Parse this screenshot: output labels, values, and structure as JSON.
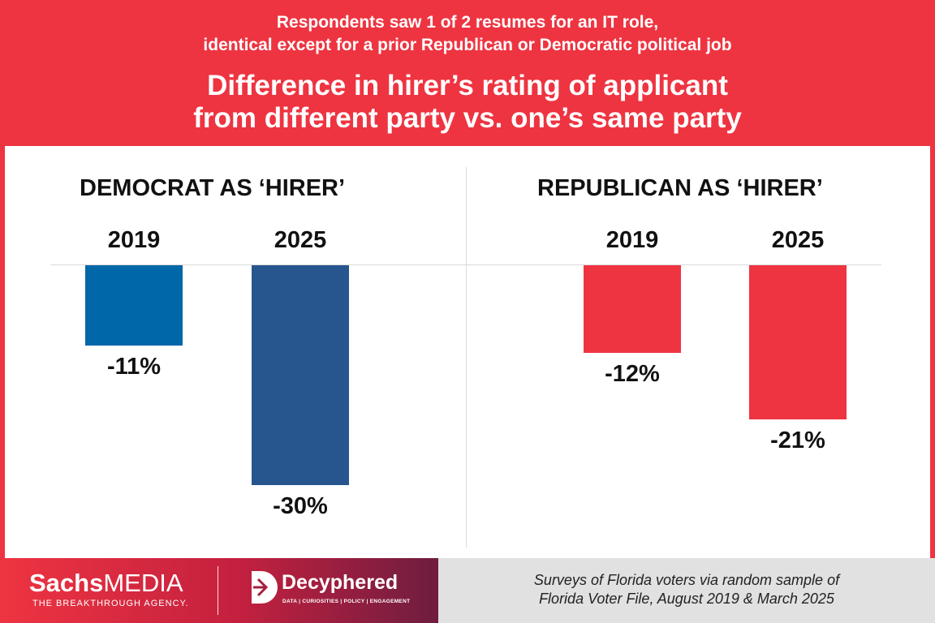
{
  "header": {
    "subtitle_line1": "Respondents saw 1 of 2 resumes for an IT role,",
    "subtitle_line2": "identical except for a prior Republican or Democratic political job",
    "title_line1": "Difference in hirer’s rating of applicant",
    "title_line2": "from different party vs. one’s same party"
  },
  "colors": {
    "header_bg": "#ee3441",
    "dem_2019": "#0068a8",
    "dem_2025": "#27568f",
    "rep": "#ee3441"
  },
  "chart_data": [
    {
      "type": "bar",
      "title": "DEMOCRAT AS ‘HIRER’",
      "categories": [
        "2019",
        "2025"
      ],
      "values": [
        -11,
        -30
      ],
      "value_labels": [
        "-11%",
        "-30%"
      ],
      "ylim": [
        -30,
        0
      ],
      "xlabel": "",
      "ylabel": ""
    },
    {
      "type": "bar",
      "title": "REPUBLICAN AS ‘HIRER’",
      "categories": [
        "2019",
        "2025"
      ],
      "values": [
        -12,
        -21
      ],
      "value_labels": [
        "-12%",
        "-21%"
      ],
      "ylim": [
        -30,
        0
      ],
      "xlabel": "",
      "ylabel": ""
    }
  ],
  "footer": {
    "brand1_bold": "Sachs",
    "brand1_light": "MEDIA",
    "brand1_tagline": "THE BREAKTHROUGH AGENCY.",
    "brand2_name": "Decyphered",
    "brand2_tagline": "DATA | CURIOSITIES | POLICY | ENGAGEMENT",
    "source_line1": "Surveys of Florida voters via random sample of",
    "source_line2": "Florida Voter File,  August 2019 & March 2025"
  }
}
